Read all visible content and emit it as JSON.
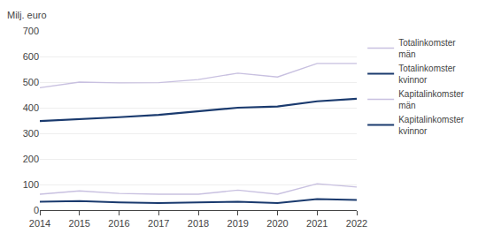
{
  "chart_data": {
    "type": "line",
    "ylabel": "Milj. euro",
    "x": [
      2014,
      2015,
      2016,
      2017,
      2018,
      2019,
      2020,
      2021,
      2022
    ],
    "series": [
      {
        "name": "Totalinkomster\nmän",
        "color": "#c8c0e0",
        "values": [
          478,
          500,
          497,
          498,
          510,
          535,
          520,
          573,
          573
        ]
      },
      {
        "name": "Totalinkomster\nkvinnor",
        "color": "#1a3a6e",
        "values": [
          348,
          355,
          363,
          372,
          385,
          400,
          405,
          425,
          435
        ]
      },
      {
        "name": "Kapitalinkomster\nmän",
        "color": "#c8c0e0",
        "values": [
          62,
          75,
          65,
          62,
          62,
          78,
          62,
          103,
          90
        ]
      },
      {
        "name": "Kapitalinkomster\nkvinnor",
        "color": "#1a3a6e",
        "values": [
          33,
          35,
          30,
          28,
          30,
          33,
          28,
          43,
          40
        ]
      }
    ],
    "xlim": [
      2014,
      2022
    ],
    "xticks": [
      2014,
      2015,
      2016,
      2017,
      2018,
      2019,
      2020,
      2021,
      2022
    ],
    "ylim": [
      0,
      700
    ],
    "yticks": [
      0,
      100,
      200,
      300,
      400,
      500,
      600,
      700
    ],
    "grid": true,
    "legend": "right"
  }
}
